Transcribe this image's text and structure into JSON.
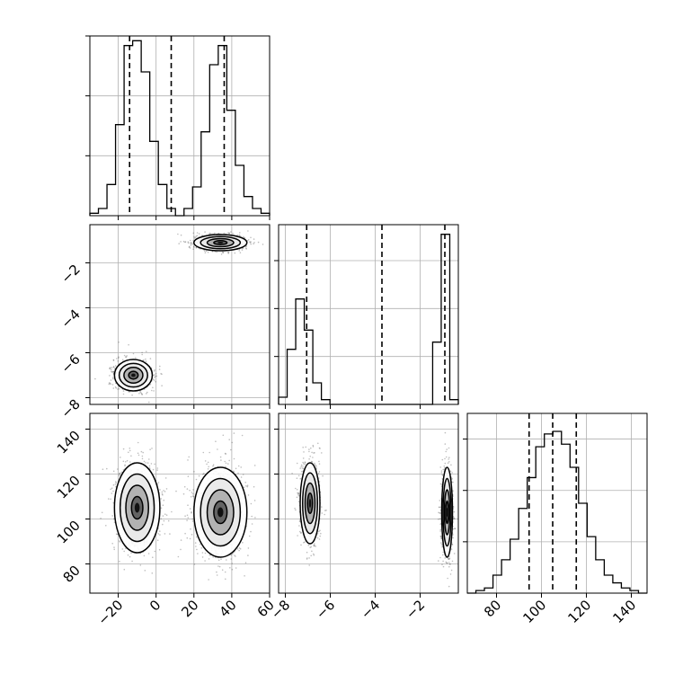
{
  "chart_data": {
    "type": "corner",
    "grid": true,
    "colors": {
      "line": "#000000",
      "grid": "#b0b0b0",
      "scatter": "#444444"
    },
    "params": [
      {
        "range": [
          -35,
          60
        ],
        "ticks": [
          -20,
          0,
          20,
          40,
          60
        ],
        "quantiles": [
          -14,
          8,
          36
        ]
      },
      {
        "range": [
          -8.3,
          -0.3
        ],
        "ticks": [
          -8,
          -6,
          -4,
          -2
        ],
        "quantiles": [
          -7.05,
          -3.7,
          -0.9
        ]
      },
      {
        "range": [
          67,
          147
        ],
        "ticks": [
          80,
          100,
          120,
          140
        ],
        "quantiles": [
          94.5,
          105,
          115.5
        ]
      }
    ],
    "histograms": [
      {
        "param": 0,
        "counts": [
          1,
          3,
          13,
          38,
          71,
          73,
          60,
          31,
          13,
          3,
          0,
          3,
          12,
          35,
          63,
          71,
          44,
          21,
          8,
          3,
          1
        ],
        "ylim": [
          0,
          75
        ],
        "yticks": [
          25,
          50,
          75
        ]
      },
      {
        "param": 1,
        "counts": [
          3,
          23,
          44,
          31,
          9,
          2,
          0,
          0,
          0,
          0,
          0,
          0,
          0,
          0,
          0,
          0,
          0,
          0,
          26,
          71,
          2
        ],
        "ylim": [
          0,
          75
        ],
        "yticks": [
          20,
          40,
          60
        ]
      },
      {
        "param": 2,
        "counts": [
          0,
          1,
          2,
          7,
          13,
          21,
          33,
          45,
          57,
          62,
          63,
          58,
          49,
          35,
          22,
          13,
          7,
          4,
          2,
          1,
          0
        ],
        "ylim": [
          0,
          70
        ],
        "yticks": [
          20,
          40,
          60
        ]
      }
    ],
    "panels_2d": [
      {
        "x": 0,
        "y": 1,
        "modes": [
          {
            "cx": -12,
            "cy": -7.0,
            "sx": 5,
            "sy": 0.35
          },
          {
            "cx": 34,
            "cy": -1.1,
            "sx": 7,
            "sy": 0.18
          }
        ]
      },
      {
        "x": 0,
        "y": 2,
        "modes": [
          {
            "cx": -10,
            "cy": 105,
            "sx": 6,
            "sy": 10
          },
          {
            "cx": 34,
            "cy": 103,
            "sx": 7,
            "sy": 10
          }
        ]
      },
      {
        "x": 1,
        "y": 2,
        "modes": [
          {
            "cx": -6.9,
            "cy": 107,
            "sx": 0.22,
            "sy": 9
          },
          {
            "cx": -0.8,
            "cy": 103,
            "sx": 0.12,
            "sy": 10
          }
        ]
      }
    ]
  }
}
